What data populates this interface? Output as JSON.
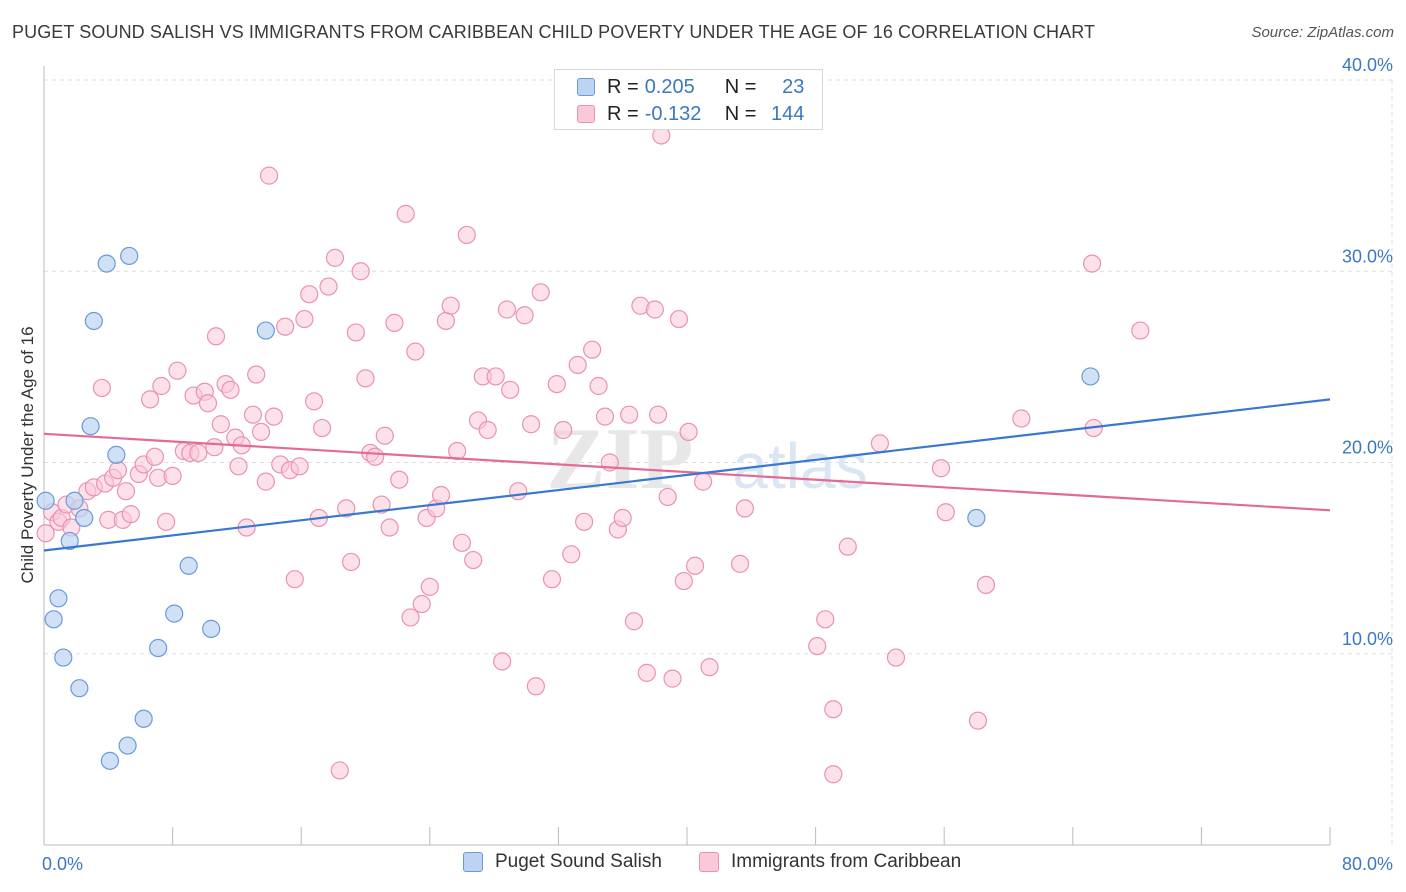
{
  "title": "PUGET SOUND SALISH VS IMMIGRANTS FROM CARIBBEAN CHILD POVERTY UNDER THE AGE OF 16 CORRELATION CHART",
  "source": "Source: ZipAtlas.com",
  "watermark": {
    "zip": "ZIP",
    "atlas": "atlas"
  },
  "colors": {
    "blue_fill": "#bcd4f2",
    "blue_stroke": "#6a9bd8",
    "blue_line": "#3a78d0",
    "pink_fill": "#f9c9d8",
    "pink_stroke": "#ea92b0",
    "pink_line": "#e46a96",
    "value_text": "#3b78c2",
    "grid": "#dddddd"
  },
  "legend": {
    "rows": [
      {
        "r_label": "R =",
        "r_value": "0.205",
        "n_label": "N =",
        "n_value": "23"
      },
      {
        "r_label": "R =",
        "r_value": "-0.132",
        "n_label": "N =",
        "n_value": "144"
      }
    ]
  },
  "chart_data": {
    "type": "scatter",
    "title": "PUGET SOUND SALISH VS IMMIGRANTS FROM CARIBBEAN CHILD POVERTY UNDER THE AGE OF 16 CORRELATION CHART",
    "xlabel": "",
    "ylabel": "Child Poverty Under the Age of 16",
    "xlim": [
      0,
      80
    ],
    "ylim": [
      0,
      40
    ],
    "x_tick_labels": [
      "0.0%",
      "80.0%"
    ],
    "y_ticks": [
      10,
      20,
      30,
      40
    ],
    "y_tick_labels": [
      "10.0%",
      "20.0%",
      "30.0%",
      "40.0%"
    ],
    "grid": true,
    "legend_position": "top-center",
    "series": [
      {
        "name": "Puget Sound Salish",
        "color": "#6a9bd8",
        "r": 0.205,
        "n": 23,
        "trend": {
          "x": [
            0,
            80
          ],
          "y": [
            15.4,
            23.3
          ]
        },
        "points": [
          [
            0.1,
            18.0
          ],
          [
            0.6,
            11.8
          ],
          [
            0.9,
            12.9
          ],
          [
            1.2,
            9.8
          ],
          [
            1.6,
            15.9
          ],
          [
            1.9,
            18.0
          ],
          [
            2.2,
            8.2
          ],
          [
            2.5,
            17.1
          ],
          [
            2.9,
            21.9
          ],
          [
            3.1,
            27.4
          ],
          [
            3.9,
            30.4
          ],
          [
            4.1,
            4.4
          ],
          [
            4.5,
            20.4
          ],
          [
            5.2,
            5.2
          ],
          [
            5.3,
            30.8
          ],
          [
            6.2,
            6.6
          ],
          [
            7.1,
            10.3
          ],
          [
            8.1,
            12.1
          ],
          [
            9.0,
            14.6
          ],
          [
            10.4,
            11.3
          ],
          [
            13.8,
            26.9
          ],
          [
            58.0,
            17.1
          ],
          [
            65.1,
            24.5
          ]
        ]
      },
      {
        "name": "Immigrants from Caribbean",
        "color": "#ea92b0",
        "r": -0.132,
        "n": 144,
        "trend": {
          "x": [
            0,
            80
          ],
          "y": [
            21.5,
            17.5
          ]
        },
        "points": [
          [
            0.1,
            16.3
          ],
          [
            0.5,
            17.4
          ],
          [
            0.9,
            16.9
          ],
          [
            1.1,
            17.1
          ],
          [
            1.4,
            17.8
          ],
          [
            1.7,
            16.6
          ],
          [
            2.2,
            17.6
          ],
          [
            2.7,
            18.5
          ],
          [
            3.1,
            18.7
          ],
          [
            3.6,
            23.9
          ],
          [
            3.8,
            18.9
          ],
          [
            4.0,
            17.0
          ],
          [
            4.3,
            19.2
          ],
          [
            4.6,
            19.6
          ],
          [
            4.9,
            17.0
          ],
          [
            5.1,
            18.5
          ],
          [
            5.4,
            17.3
          ],
          [
            5.9,
            19.4
          ],
          [
            6.2,
            19.9
          ],
          [
            6.6,
            23.3
          ],
          [
            6.9,
            20.3
          ],
          [
            7.1,
            19.2
          ],
          [
            7.3,
            24.0
          ],
          [
            7.6,
            16.9
          ],
          [
            8.0,
            19.3
          ],
          [
            8.3,
            24.8
          ],
          [
            8.7,
            20.6
          ],
          [
            9.1,
            20.5
          ],
          [
            9.3,
            23.5
          ],
          [
            9.6,
            20.5
          ],
          [
            10.0,
            23.7
          ],
          [
            10.2,
            23.1
          ],
          [
            10.6,
            20.8
          ],
          [
            10.7,
            26.6
          ],
          [
            11.0,
            22.0
          ],
          [
            11.3,
            24.1
          ],
          [
            11.6,
            23.8
          ],
          [
            11.9,
            21.3
          ],
          [
            12.1,
            19.8
          ],
          [
            12.3,
            20.9
          ],
          [
            12.6,
            16.6
          ],
          [
            13.0,
            22.5
          ],
          [
            13.2,
            24.6
          ],
          [
            13.5,
            21.6
          ],
          [
            13.8,
            19.0
          ],
          [
            14.0,
            35.0
          ],
          [
            14.3,
            22.4
          ],
          [
            14.7,
            19.9
          ],
          [
            15.0,
            27.1
          ],
          [
            15.3,
            19.6
          ],
          [
            15.6,
            13.9
          ],
          [
            15.9,
            19.8
          ],
          [
            16.2,
            27.5
          ],
          [
            16.5,
            28.8
          ],
          [
            16.8,
            23.2
          ],
          [
            17.1,
            17.1
          ],
          [
            17.3,
            21.8
          ],
          [
            17.7,
            29.2
          ],
          [
            18.1,
            30.7
          ],
          [
            18.4,
            3.9
          ],
          [
            18.8,
            17.6
          ],
          [
            19.1,
            14.8
          ],
          [
            19.4,
            26.8
          ],
          [
            19.7,
            30.0
          ],
          [
            20.0,
            24.4
          ],
          [
            20.3,
            20.5
          ],
          [
            20.6,
            20.3
          ],
          [
            21.0,
            17.8
          ],
          [
            21.2,
            21.4
          ],
          [
            21.5,
            16.6
          ],
          [
            21.8,
            27.3
          ],
          [
            22.1,
            19.1
          ],
          [
            22.5,
            33.0
          ],
          [
            22.8,
            11.9
          ],
          [
            23.1,
            25.8
          ],
          [
            23.5,
            12.6
          ],
          [
            23.8,
            17.1
          ],
          [
            24.0,
            13.5
          ],
          [
            24.4,
            17.6
          ],
          [
            24.7,
            18.3
          ],
          [
            25.0,
            27.4
          ],
          [
            25.3,
            28.2
          ],
          [
            25.7,
            20.6
          ],
          [
            26.0,
            15.8
          ],
          [
            26.3,
            31.9
          ],
          [
            26.7,
            14.9
          ],
          [
            27.0,
            22.2
          ],
          [
            27.3,
            24.5
          ],
          [
            27.6,
            21.7
          ],
          [
            28.1,
            24.5
          ],
          [
            28.5,
            9.6
          ],
          [
            28.8,
            28.0
          ],
          [
            29.0,
            23.8
          ],
          [
            29.5,
            18.5
          ],
          [
            29.9,
            27.7
          ],
          [
            30.3,
            22.0
          ],
          [
            30.6,
            8.3
          ],
          [
            30.9,
            28.9
          ],
          [
            31.6,
            13.9
          ],
          [
            31.9,
            24.1
          ],
          [
            32.3,
            21.7
          ],
          [
            32.8,
            15.2
          ],
          [
            33.2,
            25.1
          ],
          [
            33.6,
            16.9
          ],
          [
            34.1,
            25.9
          ],
          [
            34.5,
            24.0
          ],
          [
            34.9,
            22.4
          ],
          [
            35.2,
            20.0
          ],
          [
            35.7,
            16.5
          ],
          [
            36.0,
            17.1
          ],
          [
            36.4,
            22.5
          ],
          [
            36.7,
            11.7
          ],
          [
            37.1,
            28.2
          ],
          [
            37.5,
            9.0
          ],
          [
            38.0,
            28.0
          ],
          [
            38.2,
            22.5
          ],
          [
            38.4,
            37.1
          ],
          [
            38.8,
            18.2
          ],
          [
            39.1,
            8.7
          ],
          [
            39.5,
            27.5
          ],
          [
            39.8,
            13.8
          ],
          [
            40.1,
            21.6
          ],
          [
            40.5,
            14.6
          ],
          [
            41.0,
            19.0
          ],
          [
            41.4,
            9.3
          ],
          [
            43.3,
            14.7
          ],
          [
            43.6,
            17.6
          ],
          [
            48.1,
            10.4
          ],
          [
            48.6,
            11.8
          ],
          [
            49.1,
            7.1
          ],
          [
            49.1,
            3.7
          ],
          [
            50.0,
            15.6
          ],
          [
            52.0,
            21.0
          ],
          [
            53.0,
            9.8
          ],
          [
            55.8,
            19.7
          ],
          [
            56.1,
            17.4
          ],
          [
            58.1,
            6.5
          ],
          [
            58.6,
            13.6
          ],
          [
            60.8,
            22.3
          ],
          [
            65.2,
            30.4
          ],
          [
            65.3,
            21.8
          ],
          [
            68.2,
            26.9
          ]
        ]
      }
    ]
  }
}
